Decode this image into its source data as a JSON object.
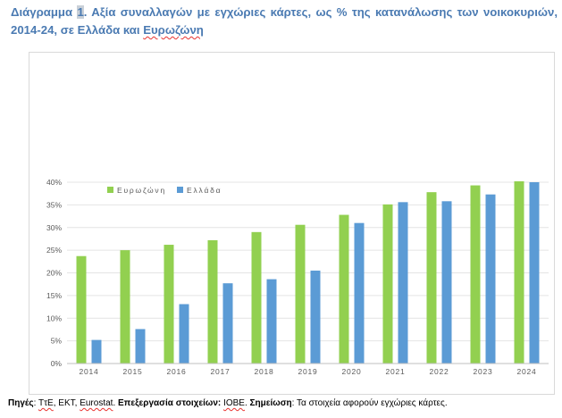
{
  "title": {
    "prefix": "Διάγραμμα ",
    "number": "1",
    "text_line1": ". Αξία συναλλαγών με εγχώριες κάρτες, ως % της κατανάλωσης των νοικοκυριών,",
    "text_line2_start": "2014-24, σε Ελλάδα και ",
    "text_line2_word": "Ευρωζώνη"
  },
  "colors": {
    "eurozone": "#92d050",
    "greece": "#5b9bd5",
    "title": "#4a7ab2"
  },
  "chart_data": {
    "type": "bar",
    "categories": [
      "2014",
      "2015",
      "2016",
      "2017",
      "2018",
      "2019",
      "2020",
      "2021",
      "2022",
      "2023",
      "2024"
    ],
    "series": [
      {
        "name": "Ευρωζώνη",
        "values": [
          23.7,
          25.0,
          26.2,
          27.2,
          29.0,
          30.6,
          32.8,
          35.1,
          37.8,
          39.3,
          40.2
        ]
      },
      {
        "name": "Ελλάδα",
        "values": [
          5.2,
          7.6,
          13.1,
          17.7,
          18.6,
          20.5,
          31.0,
          35.6,
          35.8,
          37.3,
          40.0
        ]
      }
    ],
    "y_ticks": [
      "0%",
      "5%",
      "10%",
      "15%",
      "20%",
      "25%",
      "30%",
      "35%",
      "40%"
    ],
    "ylim": [
      0,
      40
    ],
    "legend_position": "top-left",
    "grid": true
  },
  "source": {
    "label1": "Πηγές",
    "part1": ": ",
    "s1": "ΤτΕ",
    "s2": ", ΕΚΤ, ",
    "s3": "Eurostat",
    "s4": ". ",
    "label2": "Επεξεργασία στοιχείων: ",
    "s5": "ΙΟΒΕ",
    "s6": ". ",
    "label3": "Σημείωση",
    "s7": ": Τα στοιχεία αφορούν εγχώριες κάρτες."
  }
}
